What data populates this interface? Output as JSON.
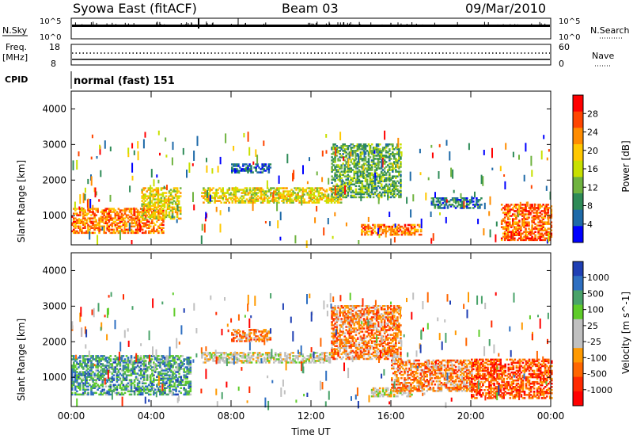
{
  "header": {
    "title": "Syowa East (fitACF)",
    "beam": "Beam 03",
    "date": "09/Mar/2010"
  },
  "aux_panels": {
    "sky_label": "N.Sky",
    "sky_ticks": [
      "10^5",
      "10^0"
    ],
    "search_label": "N.Search",
    "search_ticks": [
      "10^5",
      "10^0"
    ],
    "freq_label": "Freq.",
    "freq_unit": "[MHz]",
    "freq_ticks": [
      "18",
      "8"
    ],
    "nave_label": "Nave",
    "nave_ticks": [
      "60",
      "0"
    ],
    "cpid_label": "CPID",
    "cpid_text": "normal (fast) 151"
  },
  "chart_data": [
    {
      "type": "heatmap",
      "name": "power",
      "ylabel": "Slant Range [km]",
      "yticks": [
        "4000",
        "3000",
        "2000",
        "1000"
      ],
      "ylim": [
        180,
        4500
      ],
      "xticks": [
        "00:00",
        "04:00",
        "08:00",
        "12:00",
        "16:00",
        "20:00",
        "00:00"
      ],
      "xlim_hours": [
        0,
        24
      ],
      "colorbar": {
        "label": "Power [dB]",
        "ticks": [
          "28",
          "24",
          "20",
          "16",
          "12",
          "8",
          "4"
        ],
        "range": [
          0,
          30
        ],
        "colors": [
          "#ff0000",
          "#ff4500",
          "#ff8c00",
          "#ffc800",
          "#c8e000",
          "#6fb33f",
          "#2e8b57",
          "#1e6aa8",
          "#0000ff"
        ]
      },
      "regions": [
        {
          "t0": 0.0,
          "t1": 4.6,
          "r0": 500,
          "r1": 1200,
          "level": 0.75
        },
        {
          "t0": 3.5,
          "t1": 5.5,
          "r0": 900,
          "r1": 1800,
          "level": 0.55
        },
        {
          "t0": 6.5,
          "t1": 13.5,
          "r0": 1350,
          "r1": 1800,
          "level": 0.55
        },
        {
          "t0": 8.0,
          "t1": 10.0,
          "r0": 2200,
          "r1": 2450,
          "level": 0.15
        },
        {
          "t0": 13.0,
          "t1": 16.5,
          "r0": 1500,
          "r1": 3000,
          "level": 0.35
        },
        {
          "t0": 14.5,
          "t1": 17.5,
          "r0": 450,
          "r1": 750,
          "level": 0.75
        },
        {
          "t0": 18.0,
          "t1": 20.5,
          "r0": 1200,
          "r1": 1500,
          "level": 0.2
        },
        {
          "t0": 21.5,
          "t1": 24.0,
          "r0": 300,
          "r1": 1300,
          "level": 0.8
        }
      ]
    },
    {
      "type": "heatmap",
      "name": "velocity",
      "ylabel": "Slant Range [km]",
      "yticks": [
        "4000",
        "3000",
        "2000",
        "1000"
      ],
      "ylim": [
        180,
        4500
      ],
      "xticks": [
        "00:00",
        "04:00",
        "08:00",
        "12:00",
        "16:00",
        "20:00",
        "00:00"
      ],
      "xlim_hours": [
        0,
        24
      ],
      "xlabel": "Time UT",
      "colorbar": {
        "label": "Velocity [m s^-1]",
        "ticks": [
          "1000",
          "500",
          "100",
          "25",
          "-25",
          "-100",
          "-500",
          "-1000"
        ],
        "colors": [
          "#1f3fb4",
          "#2e6fc1",
          "#4aa36a",
          "#5fcc2a",
          "#c0c0c0",
          "#c0c0c0",
          "#ff9900",
          "#ff6600",
          "#ff2a00",
          "#ff0000"
        ]
      },
      "regions": [
        {
          "t0": 0.0,
          "t1": 6.0,
          "r0": 500,
          "r1": 1600,
          "level": 0.75
        },
        {
          "t0": 6.5,
          "t1": 13.0,
          "r0": 1400,
          "r1": 1700,
          "level": 0.5
        },
        {
          "t0": 8.0,
          "t1": 10.0,
          "r0": 2000,
          "r1": 2350,
          "level": 0.3
        },
        {
          "t0": 13.0,
          "t1": 16.5,
          "r0": 1500,
          "r1": 3000,
          "level": 0.3
        },
        {
          "t0": 15.0,
          "t1": 17.0,
          "r0": 450,
          "r1": 700,
          "level": 0.5
        },
        {
          "t0": 16.0,
          "t1": 20.0,
          "r0": 600,
          "r1": 1500,
          "level": 0.3
        },
        {
          "t0": 20.0,
          "t1": 24.0,
          "r0": 400,
          "r1": 1500,
          "level": 0.2
        }
      ]
    }
  ]
}
